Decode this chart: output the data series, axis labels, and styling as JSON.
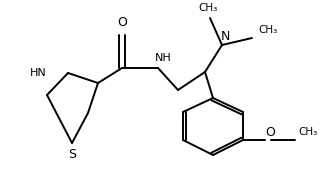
{
  "bg_color": "#ffffff",
  "line_color": "#000000",
  "text_color": "#000000",
  "lw": 1.4,
  "fs": 8.0,
  "figw": 3.2,
  "figh": 1.84,
  "dpi": 100,
  "xlim": [
    0,
    320
  ],
  "ylim": [
    0,
    184
  ]
}
